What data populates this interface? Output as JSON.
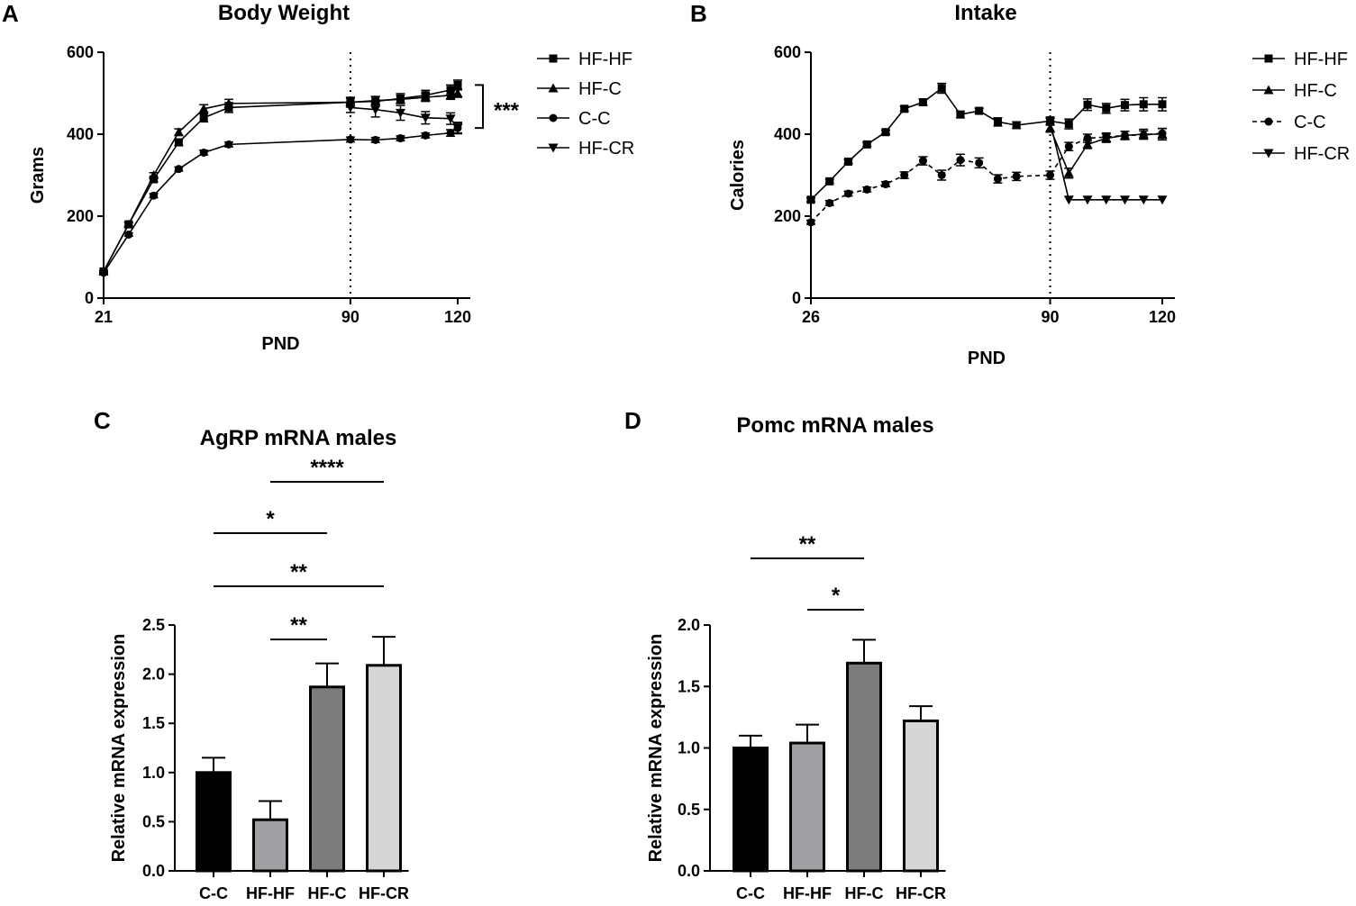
{
  "figure": {
    "panels": {
      "A": {
        "letter": "A",
        "title": "Body Weight"
      },
      "B": {
        "letter": "B",
        "title": "Intake"
      },
      "C": {
        "letter": "C",
        "title": "AgRP mRNA males"
      },
      "D": {
        "letter": "D",
        "title": "Pomc mRNA males"
      }
    }
  },
  "chart_data": [
    {
      "id": "A",
      "type": "line",
      "title": "Body Weight",
      "xlabel": "PND",
      "ylabel": "Grams",
      "xlim": [
        21,
        120
      ],
      "ylim": [
        0,
        600
      ],
      "xticks": [
        21,
        90,
        120
      ],
      "yticks": [
        0,
        200,
        400,
        600
      ],
      "vline": 90,
      "legend": [
        "HF-HF",
        "HF-C",
        "C-C",
        "HF-CR"
      ],
      "legend_position": "right",
      "bracket_label": "***",
      "series": [
        {
          "name": "HF-HF",
          "marker": "square",
          "dashed": false,
          "x": [
            21,
            28,
            35,
            42,
            49,
            56,
            90,
            97,
            104,
            111,
            118,
            120
          ],
          "y": [
            65,
            180,
            290,
            380,
            440,
            465,
            478,
            480,
            487,
            495,
            508,
            520
          ],
          "err": [
            2,
            5,
            6,
            8,
            10,
            12,
            12,
            12,
            12,
            12,
            12,
            12
          ]
        },
        {
          "name": "HF-C",
          "marker": "triangle-up",
          "dashed": false,
          "x": [
            21,
            28,
            35,
            42,
            49,
            56,
            90,
            97,
            104,
            111,
            118,
            120
          ],
          "y": [
            65,
            180,
            300,
            405,
            462,
            475,
            478,
            482,
            485,
            490,
            495,
            500
          ],
          "err": [
            2,
            5,
            6,
            8,
            10,
            10,
            10,
            10,
            10,
            10,
            10,
            10
          ]
        },
        {
          "name": "C-C",
          "marker": "circle",
          "dashed": false,
          "x": [
            21,
            28,
            35,
            42,
            49,
            56,
            90,
            97,
            104,
            111,
            118,
            120
          ],
          "y": [
            62,
            155,
            250,
            315,
            355,
            375,
            387,
            386,
            390,
            397,
            403,
            415
          ],
          "err": [
            2,
            4,
            5,
            5,
            6,
            6,
            6,
            6,
            6,
            6,
            8,
            12
          ]
        },
        {
          "name": "HF-CR",
          "marker": "triangle-down",
          "dashed": false,
          "x": [
            90,
            97,
            104,
            111,
            118,
            120
          ],
          "y": [
            465,
            460,
            452,
            440,
            438,
            415
          ],
          "err": [
            12,
            18,
            18,
            15,
            14,
            14
          ]
        }
      ]
    },
    {
      "id": "B",
      "type": "line",
      "title": "Intake",
      "xlabel": "PND",
      "ylabel": "Calories",
      "xlim": [
        26,
        120
      ],
      "ylim": [
        0,
        600
      ],
      "xticks": [
        26,
        90,
        120
      ],
      "yticks": [
        0,
        200,
        400,
        600
      ],
      "vline": 90,
      "legend": [
        "HF-HF",
        "HF-C",
        "C-C",
        "HF-CR"
      ],
      "legend_position": "right",
      "series": [
        {
          "name": "HF-HF",
          "marker": "square",
          "dashed": false,
          "x": [
            26,
            31,
            36,
            41,
            46,
            51,
            56,
            61,
            66,
            71,
            76,
            81,
            90,
            95,
            100,
            105,
            110,
            115,
            120
          ],
          "y": [
            240,
            285,
            333,
            375,
            405,
            462,
            478,
            512,
            448,
            457,
            430,
            422,
            432,
            425,
            472,
            463,
            471,
            473,
            473
          ],
          "err": [
            5,
            5,
            5,
            5,
            5,
            6,
            8,
            12,
            8,
            6,
            10,
            8,
            10,
            12,
            14,
            12,
            14,
            16,
            16
          ]
        },
        {
          "name": "HF-C",
          "marker": "triangle-up",
          "dashed": false,
          "x": [
            90,
            95,
            100,
            105,
            110,
            115,
            120
          ],
          "y": [
            415,
            305,
            375,
            390,
            397,
            400,
            400
          ],
          "err": [
            10,
            12,
            10,
            10,
            10,
            12,
            14
          ]
        },
        {
          "name": "C-C",
          "marker": "circle",
          "dashed": true,
          "x": [
            26,
            31,
            36,
            41,
            46,
            51,
            56,
            61,
            66,
            71,
            76,
            81,
            90,
            95,
            100,
            105,
            110,
            115,
            120
          ],
          "y": [
            185,
            232,
            255,
            265,
            278,
            300,
            335,
            300,
            337,
            330,
            291,
            297,
            300,
            370,
            390,
            393,
            397,
            398,
            402
          ],
          "err": [
            5,
            6,
            6,
            6,
            6,
            8,
            10,
            12,
            14,
            12,
            10,
            10,
            10,
            10,
            10,
            10,
            10,
            10,
            12
          ]
        },
        {
          "name": "HF-CR",
          "marker": "triangle-down",
          "dashed": false,
          "x": [
            90,
            95,
            100,
            105,
            110,
            115,
            120
          ],
          "y": [
            430,
            240,
            240,
            240,
            240,
            240,
            240
          ],
          "err": [
            0,
            0,
            0,
            0,
            0,
            0,
            0
          ]
        }
      ]
    },
    {
      "id": "C",
      "type": "bar",
      "title": "AgRP mRNA males",
      "ylabel": "Relative mRNA expression",
      "ylim": [
        0,
        2.5
      ],
      "yticks": [
        0.0,
        0.5,
        1.0,
        1.5,
        2.0,
        2.5
      ],
      "categories": [
        "C-C",
        "HF-HF",
        "HF-C",
        "HF-CR"
      ],
      "values": [
        1.0,
        0.52,
        1.87,
        2.09
      ],
      "errors": [
        0.15,
        0.19,
        0.24,
        0.29
      ],
      "colors": [
        "#000000",
        "#9fa0a6",
        "#7c7c7c",
        "#d6d6d6"
      ],
      "significance": [
        {
          "from": 1,
          "to": 3,
          "label": "****"
        },
        {
          "from": 0,
          "to": 2,
          "label": "*"
        },
        {
          "from": 0,
          "to": 3,
          "label": "**"
        },
        {
          "from": 1,
          "to": 2,
          "label": "**"
        }
      ]
    },
    {
      "id": "D",
      "type": "bar",
      "title": "Pomc mRNA males",
      "ylabel": "Relative mRNA expression",
      "ylim": [
        0,
        2.0
      ],
      "yticks": [
        0.0,
        0.5,
        1.0,
        1.5,
        2.0
      ],
      "categories": [
        "C-C",
        "HF-HF",
        "HF-C",
        "HF-CR"
      ],
      "values": [
        1.0,
        1.04,
        1.69,
        1.22
      ],
      "errors": [
        0.1,
        0.15,
        0.19,
        0.12
      ],
      "colors": [
        "#000000",
        "#9fa0a6",
        "#7c7c7c",
        "#d6d6d6"
      ],
      "significance": [
        {
          "from": 0,
          "to": 2,
          "label": "**"
        },
        {
          "from": 1,
          "to": 2,
          "label": "*"
        }
      ]
    }
  ]
}
